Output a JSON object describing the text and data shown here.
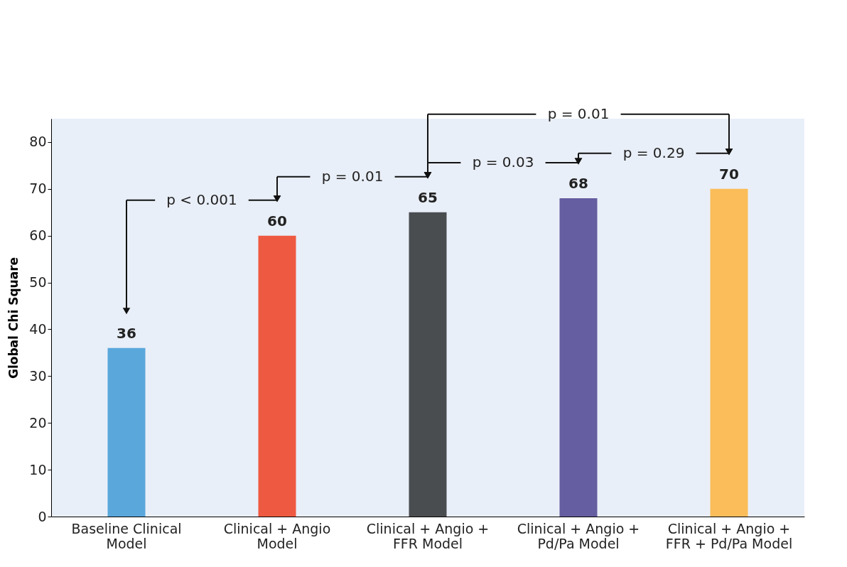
{
  "chart_data": {
    "type": "bar",
    "ylabel": "Global Chi Square",
    "categories": [
      "Baseline Clinical Model",
      "Clinical + Angio Model",
      "Clinical + Angio + FFR Model",
      "Clinical + Angio + Pd/Pa Model",
      "Clinical + Angio + FFR + Pd/Pa Model"
    ],
    "values": [
      36,
      60,
      65,
      68,
      70
    ],
    "colors": [
      "#5aa7dc",
      "#ee5a41",
      "#4a4d50",
      "#655ea0",
      "#fbbd59"
    ],
    "ylim": [
      0,
      85
    ],
    "yticks": [
      0,
      10,
      20,
      30,
      40,
      50,
      60,
      70,
      80
    ],
    "grid": false,
    "data_labels": true,
    "annotations": [
      "p < 0.001",
      "p = 0.01",
      "p = 0.03",
      "p = 0.29",
      "p = 0.01"
    ]
  }
}
